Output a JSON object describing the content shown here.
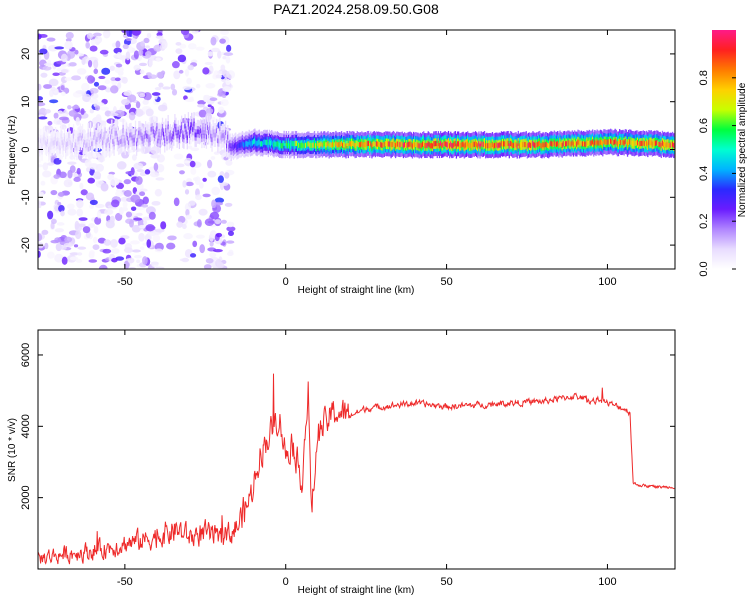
{
  "title": "PAZ1.2024.258.09.50.G08",
  "colors": {
    "snr_line": "#ee2a2a",
    "background": "#ffffff",
    "colorbar": [
      "#ffffff",
      "#e8dcff",
      "#b085ff",
      "#6a1cff",
      "#2a2aff",
      "#00b4ff",
      "#00ffd0",
      "#00ff3c",
      "#c8ff00",
      "#ffd000",
      "#ff7a00",
      "#ff2020",
      "#ff1a88"
    ]
  },
  "chart_data": [
    {
      "type": "heatmap",
      "title": "",
      "xlabel": "Height of straight line (km)",
      "ylabel": "Frequency (Hz)",
      "xlim": [
        -77,
        121
      ],
      "ylim": [
        -25,
        25
      ],
      "xticks": [
        -50,
        0,
        50,
        100
      ],
      "yticks": [
        -20,
        -10,
        0,
        10,
        20
      ],
      "colorbar": {
        "label": "Normalized spectral amplitude",
        "ticks": [
          "0.0",
          "0.2",
          "0.4",
          "0.6",
          "0.8"
        ],
        "range": [
          0,
          1
        ]
      },
      "ridge": {
        "description_points_x": [
          -77,
          -60,
          -40,
          -30,
          -20,
          -17,
          -10,
          0,
          20,
          50,
          80,
          100,
          121
        ],
        "frequency_hz": [
          1,
          2,
          3,
          4,
          3,
          0.5,
          1.5,
          1,
          1,
          1,
          1,
          1.5,
          1
        ],
        "amplitude": [
          0.08,
          0.12,
          0.2,
          0.25,
          0.15,
          0.25,
          0.45,
          0.55,
          0.8,
          0.9,
          0.85,
          0.8,
          0.85
        ]
      }
    },
    {
      "type": "line",
      "title": "",
      "xlabel": "Height of straight line (km)",
      "ylabel": "SNR (10 * v/v)",
      "xlim": [
        -77,
        121
      ],
      "ylim": [
        0,
        6700
      ],
      "xticks": [
        -50,
        0,
        50,
        100
      ],
      "yticks": [
        2000,
        4000,
        6000
      ],
      "series": [
        {
          "x": [
            -77,
            -70,
            -60,
            -50,
            -40,
            -34,
            -30,
            -25,
            -20,
            -15,
            -11,
            -8,
            -5,
            -2,
            0,
            2,
            5,
            7,
            8,
            10,
            15,
            20,
            25,
            30,
            40,
            50,
            60,
            70,
            80,
            90,
            95,
            98,
            100,
            105,
            107,
            108,
            110,
            115,
            121
          ],
          "y": [
            300,
            400,
            500,
            700,
            900,
            1100,
            900,
            1000,
            800,
            1200,
            2000,
            3200,
            3800,
            4300,
            3200,
            3600,
            2500,
            5000,
            1500,
            3800,
            4400,
            4300,
            4500,
            4550,
            4650,
            4550,
            4600,
            4650,
            4700,
            4850,
            4700,
            4750,
            4650,
            4500,
            4400,
            2400,
            2350,
            2300,
            2300
          ]
        }
      ]
    }
  ]
}
